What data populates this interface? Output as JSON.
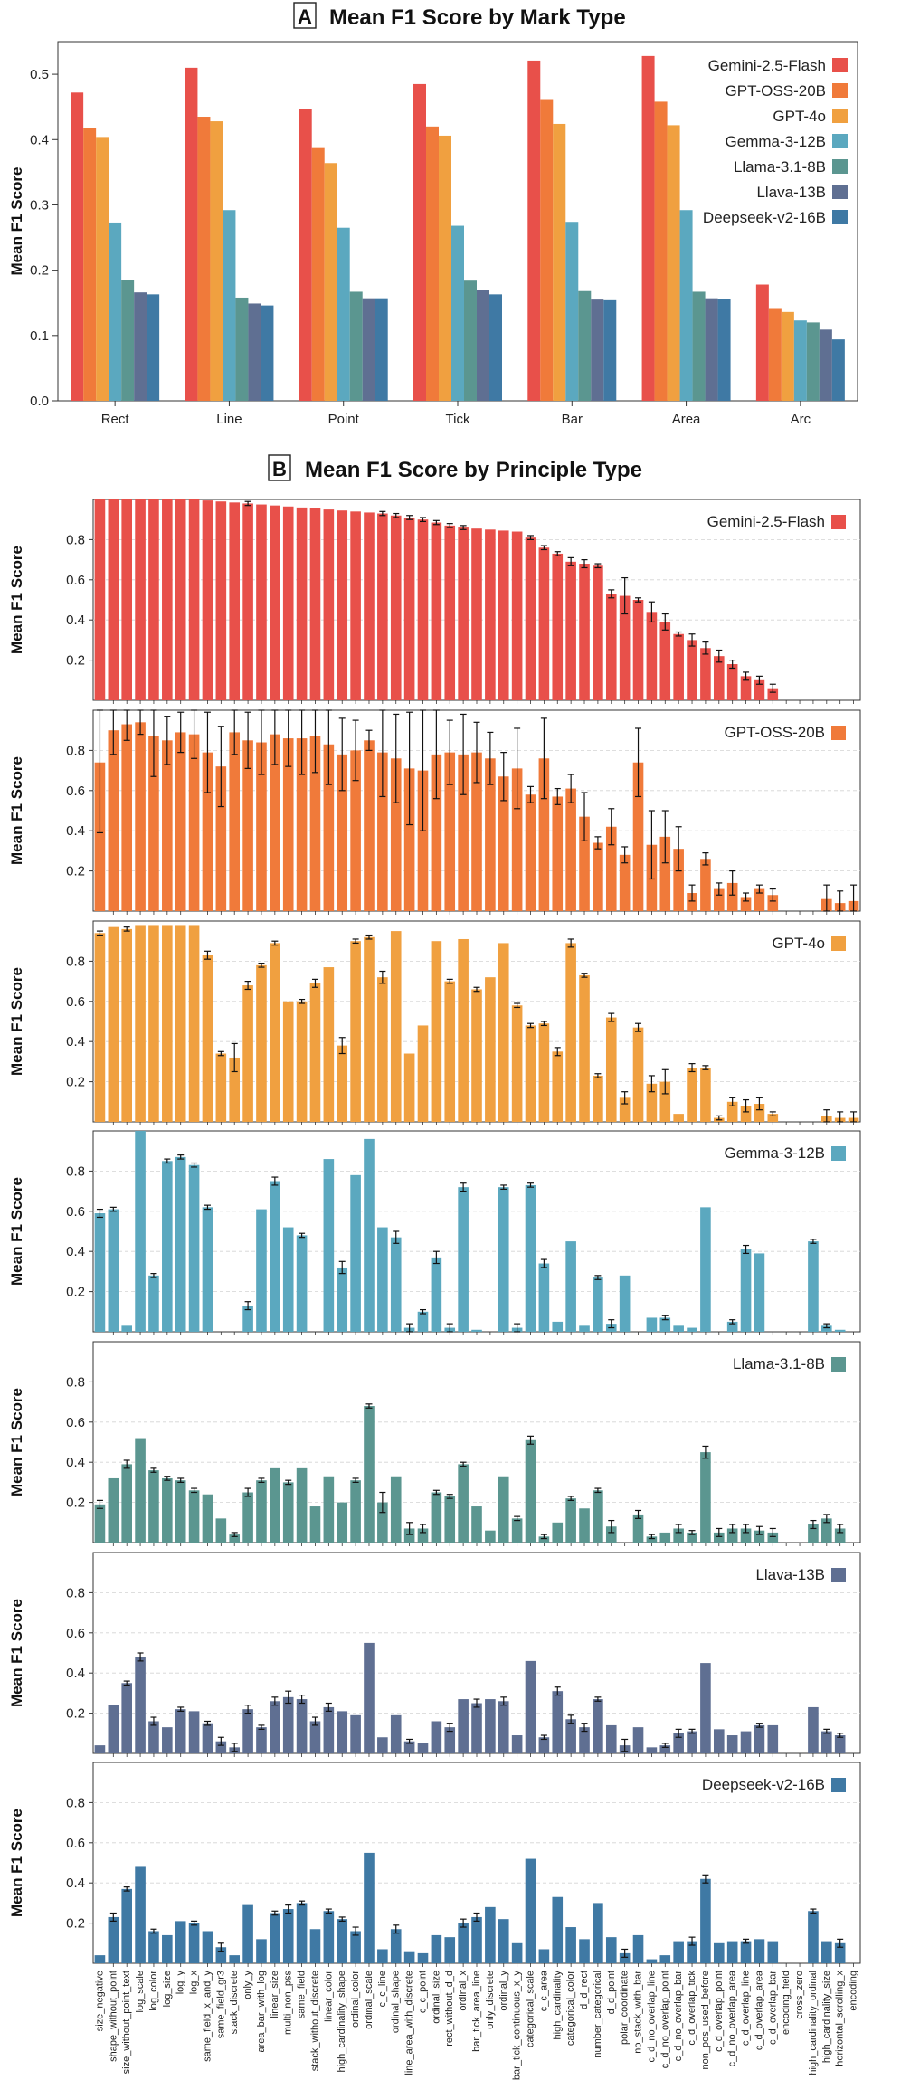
{
  "chart_data": [
    {
      "type": "bar",
      "panel": "A",
      "title": "Mean F1 Score by Mark Type",
      "xlabel": "",
      "ylabel": "Mean F1 Score",
      "ylim": [
        0,
        0.55
      ],
      "yticks": [
        "0.0",
        "0.1",
        "0.2",
        "0.3",
        "0.4",
        "0.5"
      ],
      "grid": false,
      "legend_position": "top-right",
      "categories": [
        "Rect",
        "Line",
        "Point",
        "Tick",
        "Bar",
        "Area",
        "Arc"
      ],
      "series": [
        {
          "name": "Gemini-2.5-Flash",
          "color": "#e8504a",
          "values": [
            0.472,
            0.51,
            0.447,
            0.485,
            0.521,
            0.528,
            0.178
          ]
        },
        {
          "name": "GPT-OSS-20B",
          "color": "#f07a3a",
          "values": [
            0.418,
            0.435,
            0.387,
            0.42,
            0.462,
            0.458,
            0.142
          ]
        },
        {
          "name": "GPT-4o",
          "color": "#f0a040",
          "values": [
            0.404,
            0.428,
            0.364,
            0.406,
            0.424,
            0.422,
            0.136
          ]
        },
        {
          "name": "Gemma-3-12B",
          "color": "#5ba8bf",
          "values": [
            0.273,
            0.292,
            0.265,
            0.268,
            0.274,
            0.292,
            0.123
          ]
        },
        {
          "name": "Llama-3.1-8B",
          "color": "#5b9690",
          "values": [
            0.185,
            0.158,
            0.167,
            0.184,
            0.168,
            0.167,
            0.12
          ]
        },
        {
          "name": "Llava-13B",
          "color": "#5f6f92",
          "values": [
            0.166,
            0.149,
            0.157,
            0.17,
            0.155,
            0.157,
            0.109
          ]
        },
        {
          "name": "Deepseek-v2-16B",
          "color": "#3f79a4",
          "values": [
            0.163,
            0.146,
            0.157,
            0.163,
            0.154,
            0.156,
            0.094
          ]
        }
      ]
    },
    {
      "type": "bar",
      "panel": "B",
      "title": "Mean F1 Score by Principle Type",
      "ylabel": "Mean F1 Score",
      "ylim": [
        0,
        1.0
      ],
      "yticks": [
        "0.2",
        "0.4",
        "0.6",
        "0.8"
      ],
      "grid": true,
      "legend_position": "top-right",
      "categories": [
        "size_negative",
        "shape_without_point",
        "size_without_point_text",
        "log_scale",
        "log_color",
        "log_size",
        "log_y",
        "log_x",
        "same_field_x_and_y",
        "same_field_gr3",
        "stack_discrete",
        "only_y",
        "area_bar_with_log",
        "linear_size",
        "multi_non_pss",
        "same_field",
        "stack_without_discrete",
        "linear_color",
        "high_cardinality_shape",
        "ordinal_color",
        "ordinal_scale",
        "c_c_line",
        "ordinal_shape",
        "line_area_with_discrete",
        "c_c_point",
        "ordinal_size",
        "rect_without_d_d",
        "ordinal_x",
        "bar_tick_area_line",
        "only_discrete",
        "ordinal_y",
        "bar_tick_continuous_x_y",
        "categorical_scale",
        "c_c_area",
        "high_cardinality",
        "categorical_color",
        "d_d_rect",
        "number_categorical",
        "d_d_point",
        "polar_coordinate",
        "no_stack_with_bar",
        "c_d_no_overlap_line",
        "c_d_no_overlap_point",
        "c_d_no_overlap_bar",
        "c_d_overlap_tick",
        "non_pos_used_before",
        "c_d_overlap_point",
        "c_d_no_overlap_area",
        "c_d_overlap_line",
        "c_d_overlap_area",
        "c_d_overlap_bar",
        "encoding_field",
        "cross_zero",
        "high_cardinality_ordinal",
        "high_cardinality_size",
        "horizontal_scrolling_x",
        "encoding"
      ],
      "series": [
        {
          "name": "Gemini-2.5-Flash",
          "color": "#e8504a",
          "values": [
            1.0,
            1.0,
            1.0,
            1.0,
            1.0,
            1.0,
            1.0,
            1.0,
            0.995,
            0.99,
            0.985,
            0.98,
            0.975,
            0.97,
            0.965,
            0.96,
            0.955,
            0.95,
            0.945,
            0.94,
            0.935,
            0.93,
            0.92,
            0.91,
            0.9,
            0.885,
            0.87,
            0.86,
            0.855,
            0.85,
            0.845,
            0.84,
            0.81,
            0.76,
            0.73,
            0.69,
            0.68,
            0.67,
            0.53,
            0.52,
            0.5,
            0.44,
            0.39,
            0.33,
            0.3,
            0.26,
            0.22,
            0.18,
            0.12,
            0.1,
            0.06,
            0.0,
            0.0,
            0.0,
            0.0,
            0.0,
            0.0
          ],
          "errors": [
            0,
            0,
            0,
            0,
            0,
            0,
            0,
            0,
            0,
            0,
            0,
            0.01,
            0,
            0,
            0,
            0,
            0,
            0,
            0,
            0,
            0,
            0.01,
            0.01,
            0.01,
            0.01,
            0.01,
            0.01,
            0.01,
            0,
            0,
            0,
            0,
            0.01,
            0.01,
            0.01,
            0.02,
            0.02,
            0.01,
            0.02,
            0.09,
            0.01,
            0.05,
            0.04,
            0.01,
            0.03,
            0.03,
            0.03,
            0.02,
            0.02,
            0.02,
            0.02,
            0,
            0,
            0,
            0,
            0,
            0
          ]
        },
        {
          "name": "GPT-OSS-20B",
          "color": "#f07a3a",
          "values": [
            0.74,
            0.9,
            0.93,
            0.94,
            0.87,
            0.85,
            0.89,
            0.88,
            0.79,
            0.72,
            0.89,
            0.85,
            0.84,
            0.88,
            0.86,
            0.86,
            0.87,
            0.83,
            0.78,
            0.8,
            0.85,
            0.79,
            0.76,
            0.71,
            0.7,
            0.78,
            0.79,
            0.78,
            0.79,
            0.76,
            0.67,
            0.71,
            0.58,
            0.76,
            0.57,
            0.61,
            0.47,
            0.34,
            0.42,
            0.28,
            0.74,
            0.33,
            0.37,
            0.31,
            0.09,
            0.26,
            0.11,
            0.14,
            0.07,
            0.11,
            0.08,
            0.0,
            0.0,
            0.0,
            0.06,
            0.04,
            0.05
          ],
          "errors": [
            0.35,
            0.12,
            0.08,
            0.06,
            0.2,
            0.12,
            0.1,
            0.12,
            0.2,
            0.2,
            0.11,
            0.14,
            0.16,
            0.15,
            0.14,
            0.18,
            0.18,
            0.2,
            0.18,
            0.15,
            0.05,
            0.22,
            0.22,
            0.28,
            0.3,
            0.22,
            0.16,
            0.2,
            0.15,
            0.13,
            0.12,
            0.2,
            0.04,
            0.2,
            0.04,
            0.07,
            0.12,
            0.03,
            0.09,
            0.04,
            0.17,
            0.17,
            0.13,
            0.11,
            0.04,
            0.03,
            0.03,
            0.06,
            0.02,
            0.02,
            0.03,
            0,
            0,
            0,
            0.07,
            0.06,
            0.08
          ]
        },
        {
          "name": "GPT-4o",
          "color": "#f0a040",
          "values": [
            0.94,
            0.97,
            0.96,
            0.98,
            0.98,
            0.98,
            0.98,
            0.98,
            0.83,
            0.34,
            0.32,
            0.68,
            0.78,
            0.89,
            0.6,
            0.6,
            0.69,
            0.77,
            0.38,
            0.9,
            0.92,
            0.72,
            0.95,
            0.34,
            0.48,
            0.9,
            0.7,
            0.91,
            0.66,
            0.72,
            0.89,
            0.58,
            0.48,
            0.49,
            0.35,
            0.89,
            0.73,
            0.23,
            0.52,
            0.12,
            0.47,
            0.19,
            0.2,
            0.04,
            0.27,
            0.27,
            0.02,
            0.1,
            0.08,
            0.09,
            0.04,
            0.0,
            0.0,
            0.0,
            0.03,
            0.02,
            0.02
          ],
          "errors": [
            0.01,
            0.0,
            0.01,
            0.0,
            0.0,
            0.0,
            0.0,
            0.0,
            0.02,
            0.01,
            0.07,
            0.02,
            0.01,
            0.01,
            0.0,
            0.01,
            0.02,
            0.0,
            0.04,
            0.01,
            0.01,
            0.03,
            0.0,
            0.0,
            0.0,
            0.0,
            0.01,
            0.0,
            0.01,
            0.0,
            0.0,
            0.01,
            0.01,
            0.01,
            0.02,
            0.02,
            0.01,
            0.01,
            0.02,
            0.03,
            0.02,
            0.04,
            0.06,
            0.0,
            0.02,
            0.01,
            0.01,
            0.02,
            0.03,
            0.03,
            0.01,
            0,
            0,
            0,
            0.03,
            0.03,
            0.03
          ]
        },
        {
          "name": "Gemma-3-12B",
          "color": "#5ba8bf",
          "values": [
            0.59,
            0.61,
            0.03,
            1.0,
            0.28,
            0.85,
            0.87,
            0.83,
            0.62,
            0.0,
            0.0,
            0.13,
            0.61,
            0.75,
            0.52,
            0.48,
            0.0,
            0.86,
            0.32,
            0.78,
            0.96,
            0.52,
            0.47,
            0.02,
            0.1,
            0.37,
            0.02,
            0.72,
            0.01,
            0.0,
            0.72,
            0.02,
            0.73,
            0.34,
            0.05,
            0.45,
            0.03,
            0.27,
            0.04,
            0.28,
            0.0,
            0.07,
            0.07,
            0.03,
            0.02,
            0.62,
            0.0,
            0.05,
            0.41,
            0.39,
            0.0,
            0.0,
            0.0,
            0.45,
            0.03,
            0.01,
            0.0
          ],
          "errors": [
            0.02,
            0.01,
            0.0,
            0.0,
            0.01,
            0.01,
            0.01,
            0.01,
            0.01,
            0,
            0,
            0.02,
            0.0,
            0.02,
            0.0,
            0.01,
            0,
            0.0,
            0.03,
            0.0,
            0.0,
            0.0,
            0.03,
            0.02,
            0.01,
            0.03,
            0.02,
            0.02,
            0.0,
            0,
            0.01,
            0.02,
            0.01,
            0.02,
            0.0,
            0.0,
            0.0,
            0.01,
            0.02,
            0.0,
            0,
            0.0,
            0.01,
            0.0,
            0.0,
            0.0,
            0,
            0.01,
            0.02,
            0.0,
            0,
            0,
            0,
            0.01,
            0.01,
            0.0,
            0
          ]
        },
        {
          "name": "Llama-3.1-8B",
          "color": "#5b9690",
          "values": [
            0.19,
            0.32,
            0.39,
            0.52,
            0.36,
            0.32,
            0.31,
            0.26,
            0.24,
            0.12,
            0.04,
            0.25,
            0.31,
            0.37,
            0.3,
            0.37,
            0.18,
            0.33,
            0.2,
            0.31,
            0.68,
            0.2,
            0.33,
            0.07,
            0.07,
            0.25,
            0.23,
            0.39,
            0.18,
            0.06,
            0.33,
            0.12,
            0.51,
            0.03,
            0.1,
            0.22,
            0.17,
            0.26,
            0.08,
            0.0,
            0.14,
            0.03,
            0.05,
            0.07,
            0.05,
            0.45,
            0.05,
            0.07,
            0.07,
            0.06,
            0.05,
            0.0,
            0.0,
            0.09,
            0.12,
            0.07,
            0.0
          ],
          "errors": [
            0.02,
            0.0,
            0.02,
            0.0,
            0.01,
            0.01,
            0.01,
            0.01,
            0.0,
            0.0,
            0.01,
            0.02,
            0.01,
            0.0,
            0.01,
            0.0,
            0.0,
            0.0,
            0.0,
            0.01,
            0.01,
            0.05,
            0.0,
            0.03,
            0.02,
            0.01,
            0.01,
            0.01,
            0.0,
            0.0,
            0.0,
            0.01,
            0.02,
            0.01,
            0.0,
            0.01,
            0.0,
            0.01,
            0.03,
            0,
            0.02,
            0.01,
            0.0,
            0.02,
            0.01,
            0.03,
            0.02,
            0.02,
            0.02,
            0.02,
            0.02,
            0,
            0,
            0.02,
            0.02,
            0.02,
            0
          ]
        },
        {
          "name": "Llava-13B",
          "color": "#5f6f92",
          "values": [
            0.04,
            0.24,
            0.35,
            0.48,
            0.16,
            0.13,
            0.22,
            0.21,
            0.15,
            0.06,
            0.03,
            0.22,
            0.13,
            0.26,
            0.28,
            0.27,
            0.16,
            0.23,
            0.21,
            0.19,
            0.55,
            0.08,
            0.19,
            0.06,
            0.05,
            0.16,
            0.13,
            0.27,
            0.25,
            0.27,
            0.26,
            0.09,
            0.46,
            0.08,
            0.31,
            0.17,
            0.13,
            0.27,
            0.14,
            0.04,
            0.13,
            0.03,
            0.04,
            0.1,
            0.11,
            0.45,
            0.12,
            0.09,
            0.11,
            0.14,
            0.14,
            0.0,
            0.0,
            0.23,
            0.11,
            0.09,
            0.0
          ],
          "errors": [
            0.0,
            0.0,
            0.01,
            0.02,
            0.02,
            0.0,
            0.01,
            0.0,
            0.01,
            0.02,
            0.02,
            0.02,
            0.01,
            0.02,
            0.03,
            0.02,
            0.02,
            0.02,
            0.0,
            0.0,
            0.0,
            0.0,
            0.0,
            0.01,
            0.0,
            0.0,
            0.02,
            0.0,
            0.02,
            0.0,
            0.02,
            0.0,
            0.0,
            0.01,
            0.02,
            0.02,
            0.02,
            0.01,
            0.0,
            0.03,
            0.0,
            0.0,
            0.01,
            0.02,
            0.01,
            0.0,
            0.0,
            0.0,
            0.0,
            0.01,
            0.0,
            0,
            0,
            0.0,
            0.01,
            0.01,
            0
          ]
        },
        {
          "name": "Deepseek-v2-16B",
          "color": "#3f79a4",
          "values": [
            0.04,
            0.23,
            0.37,
            0.48,
            0.16,
            0.14,
            0.21,
            0.2,
            0.16,
            0.08,
            0.04,
            0.29,
            0.12,
            0.25,
            0.27,
            0.3,
            0.17,
            0.26,
            0.22,
            0.16,
            0.55,
            0.07,
            0.17,
            0.06,
            0.05,
            0.14,
            0.13,
            0.2,
            0.23,
            0.28,
            0.22,
            0.1,
            0.52,
            0.07,
            0.33,
            0.18,
            0.12,
            0.3,
            0.13,
            0.05,
            0.14,
            0.02,
            0.04,
            0.11,
            0.11,
            0.42,
            0.1,
            0.11,
            0.11,
            0.12,
            0.11,
            0.0,
            0.0,
            0.26,
            0.11,
            0.1,
            0.0
          ],
          "errors": [
            0.0,
            0.02,
            0.01,
            0.0,
            0.01,
            0.0,
            0.0,
            0.01,
            0.0,
            0.02,
            0.0,
            0.0,
            0.0,
            0.01,
            0.02,
            0.01,
            0.0,
            0.01,
            0.01,
            0.02,
            0.0,
            0.0,
            0.02,
            0.0,
            0.0,
            0.0,
            0.0,
            0.02,
            0.02,
            0.0,
            0.0,
            0.0,
            0.0,
            0.0,
            0.0,
            0.0,
            0.0,
            0.0,
            0.0,
            0.02,
            0.0,
            0.0,
            0.0,
            0.0,
            0.02,
            0.02,
            0.0,
            0.0,
            0.01,
            0.0,
            0.0,
            0,
            0,
            0.01,
            0.0,
            0.02,
            0
          ]
        }
      ]
    }
  ]
}
